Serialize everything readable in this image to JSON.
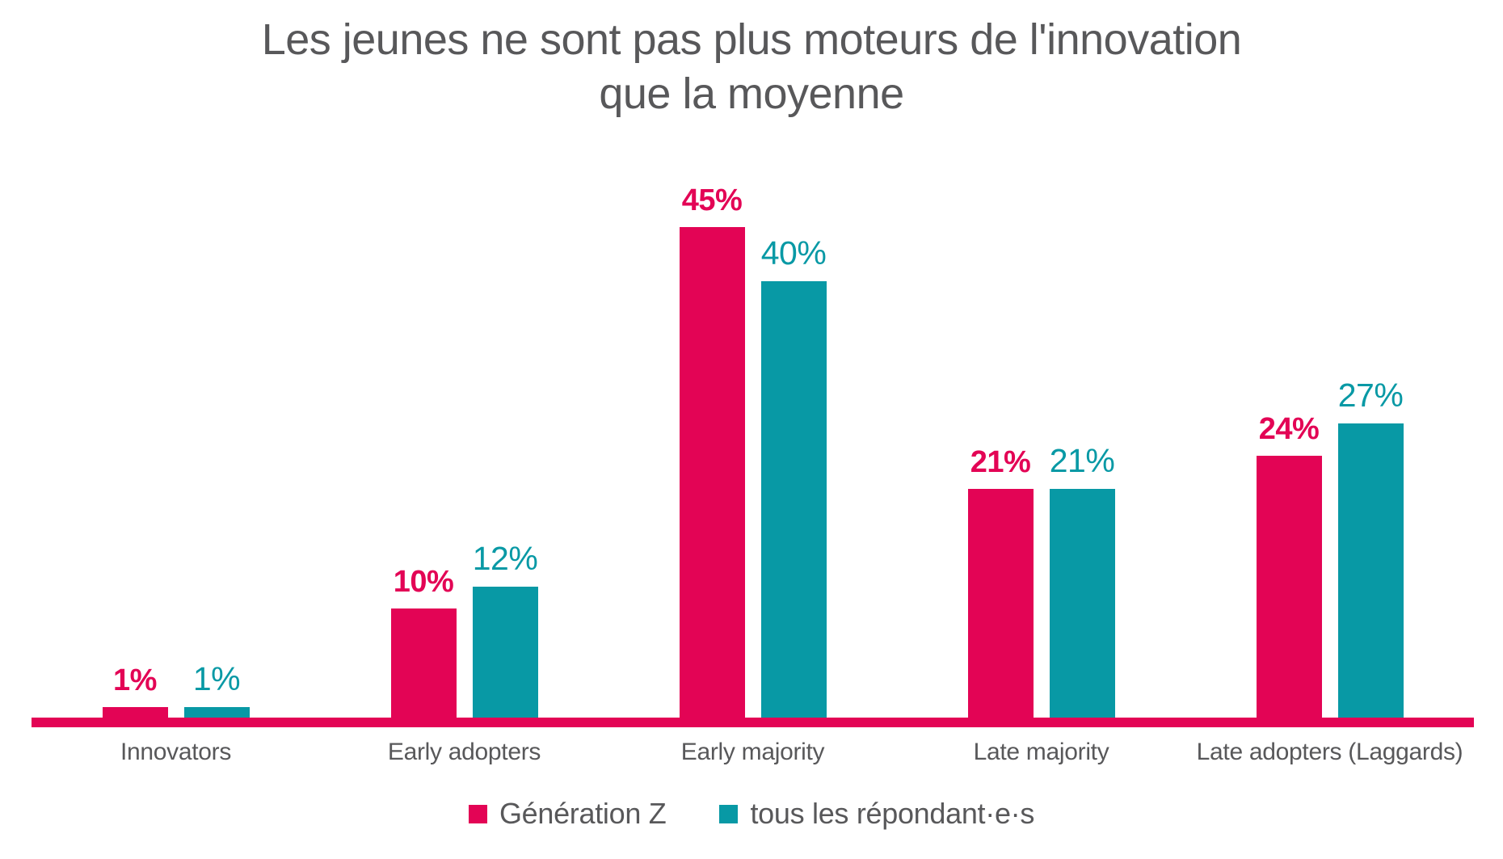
{
  "title": {
    "line1": "Les jeunes ne sont pas plus moteurs de l'innovation",
    "line2": "que la moyenne"
  },
  "colors": {
    "generation_z": "#E30455",
    "tous_les_repondants": "#0899A5",
    "text": "#58585A",
    "axis": "#E30455",
    "background": "#FFFFFF"
  },
  "chart_data": {
    "type": "bar",
    "title": "Les jeunes ne sont pas plus moteurs de l'innovation que la moyenne",
    "categories": [
      "Innovators",
      "Early adopters",
      "Early majority",
      "Late majority",
      "Late adopters (Laggards)"
    ],
    "series": [
      {
        "name": "Génération Z",
        "color": "#E30455",
        "values": [
          1,
          10,
          45,
          21,
          24
        ]
      },
      {
        "name": "tous les répondant·e·s",
        "color": "#0899A5",
        "values": [
          1,
          12,
          40,
          21,
          27
        ]
      }
    ],
    "value_suffix": "%",
    "value_labels": {
      "Génération Z": [
        "1%",
        "10%",
        "45%",
        "21%",
        "24%"
      ],
      "tous les répondant·e·s": [
        "1%",
        "12%",
        "40%",
        "21%",
        "27%"
      ]
    },
    "ylim": [
      0,
      48
    ],
    "y_axis_hidden": true,
    "grid": false,
    "legend_position": "bottom"
  },
  "legend": {
    "items": [
      {
        "label": "Génération Z",
        "color": "#E30455"
      },
      {
        "label": "tous les répondant·e·s",
        "color": "#0899A5"
      }
    ]
  }
}
